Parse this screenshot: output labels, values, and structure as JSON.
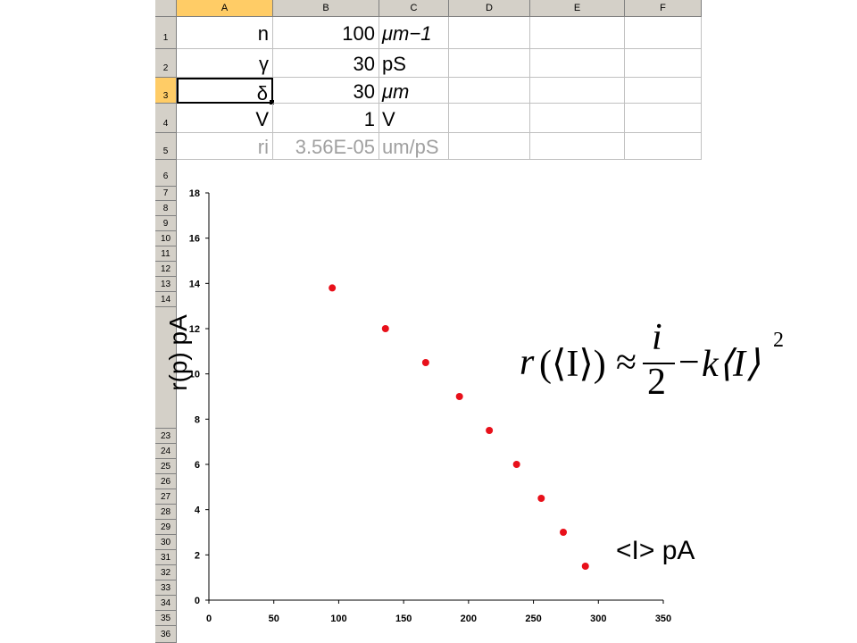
{
  "spreadsheet": {
    "columns": [
      "A",
      "B",
      "C",
      "D",
      "E",
      "F"
    ],
    "selected_column": "A",
    "selected_row": "3",
    "rows": [
      {
        "num": "1",
        "a": "n",
        "b": "100",
        "c": "μm−1"
      },
      {
        "num": "2",
        "a": "γ",
        "b": "30",
        "c": "pS"
      },
      {
        "num": "3",
        "a": "δ",
        "b": "30",
        "c": "μm"
      },
      {
        "num": "4",
        "a": "V",
        "b": "1",
        "c": "V"
      },
      {
        "num": "5",
        "a": "ri",
        "b": "3.56E-05",
        "c": "um/pS"
      }
    ],
    "lower_row_numbers": [
      "6",
      "7",
      "8",
      "9",
      "10",
      "11",
      "12",
      "13",
      "14",
      "23",
      "24",
      "25",
      "26",
      "27",
      "28",
      "29",
      "30",
      "31",
      "32",
      "33",
      "34",
      "35",
      "36"
    ]
  },
  "chart_data": {
    "type": "scatter",
    "title": "",
    "xlabel": "<I> pA",
    "ylabel": "r(p) pA",
    "xlim": [
      0,
      350
    ],
    "ylim": [
      0,
      18
    ],
    "x_ticks": [
      "0",
      "50",
      "100",
      "150",
      "200",
      "250",
      "300",
      "350"
    ],
    "y_ticks": [
      "0",
      "2",
      "4",
      "6",
      "8",
      "10",
      "12",
      "14",
      "16",
      "18"
    ],
    "grid": false,
    "marker_color": "#e8101a",
    "points": [
      {
        "x": 95,
        "y": 13.8
      },
      {
        "x": 136,
        "y": 12.0
      },
      {
        "x": 167,
        "y": 10.5
      },
      {
        "x": 193,
        "y": 9.0
      },
      {
        "x": 216,
        "y": 7.5
      },
      {
        "x": 237,
        "y": 6.0
      },
      {
        "x": 256,
        "y": 4.5
      },
      {
        "x": 273,
        "y": 3.0
      },
      {
        "x": 290,
        "y": 1.5
      }
    ]
  },
  "formula": {
    "r": "r",
    "open": "(⟨I⟩)",
    "approx": "≈",
    "num": "i",
    "den": "2",
    "minus": "−",
    "k": "k⟨I⟩",
    "exp": "2"
  }
}
